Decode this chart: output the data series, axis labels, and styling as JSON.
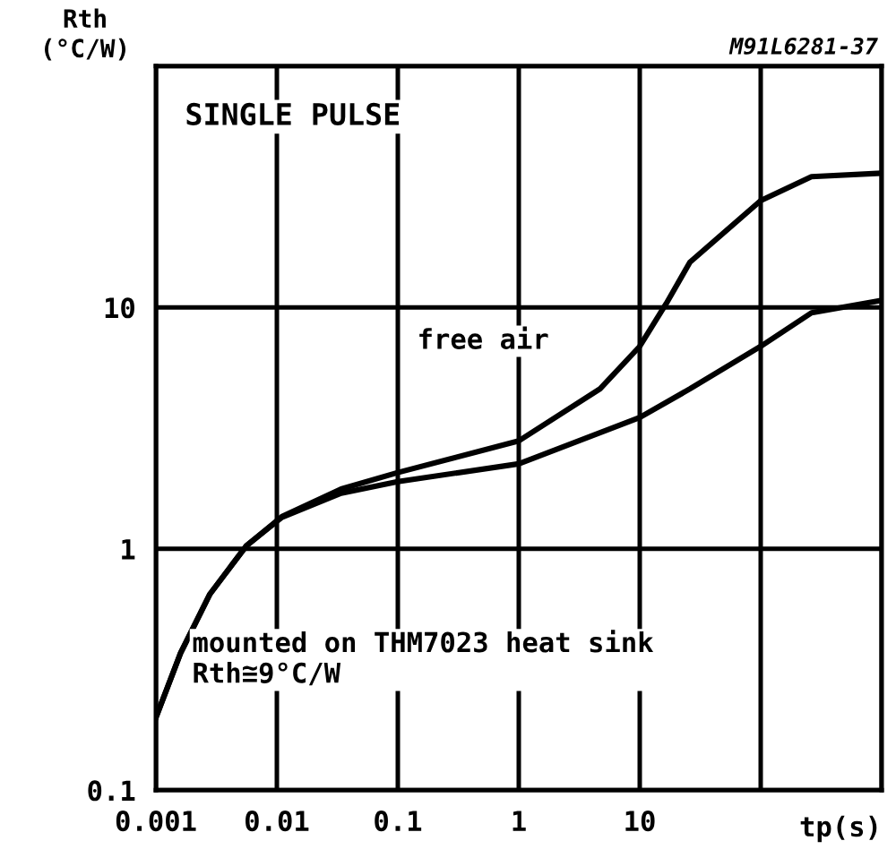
{
  "chart_data": {
    "type": "line",
    "title": null,
    "xlabel": "tp(s)",
    "ylabel": "Rth\n(°C/W)",
    "log": "xy",
    "grid": true,
    "legend": false,
    "marker": "none",
    "line_style": "solid",
    "xlim": [
      0.001,
      1000
    ],
    "ylim": [
      0.1,
      100
    ],
    "xticks": [
      0.001,
      0.01,
      0.1,
      1,
      10,
      {
        "value": 100,
        "label": null
      },
      {
        "value": 1000,
        "label": null
      }
    ],
    "yticks": [
      0.1,
      1,
      10,
      {
        "value": 100,
        "label": null
      }
    ],
    "series": [
      {
        "color": "#000000",
        "x": [
          0.001,
          0.0016,
          0.0028,
          0.0056,
          0.011,
          0.034,
          0.1,
          1,
          4.7,
          10,
          16.6,
          26,
          100,
          263,
          1000
        ],
        "values": [
          0.2,
          0.37,
          0.65,
          1.03,
          1.36,
          1.77,
          2.07,
          2.8,
          4.6,
          6.9,
          10.4,
          15.4,
          27.7,
          34.8,
          36
        ]
      },
      {
        "color": "#000000",
        "x": [
          0.001,
          0.0016,
          0.0028,
          0.0056,
          0.011,
          0.034,
          0.1,
          1,
          10,
          26,
          100,
          263,
          1000
        ],
        "values": [
          0.2,
          0.37,
          0.65,
          1.03,
          1.35,
          1.7,
          1.9,
          2.25,
          3.5,
          4.6,
          6.9,
          9.5,
          10.7
        ]
      }
    ],
    "annotations": [
      "M91L6281-37",
      "SINGLE PULSE",
      "free air",
      "mounted on THM7023 heat sink\nRth≅9°C/W"
    ]
  }
}
